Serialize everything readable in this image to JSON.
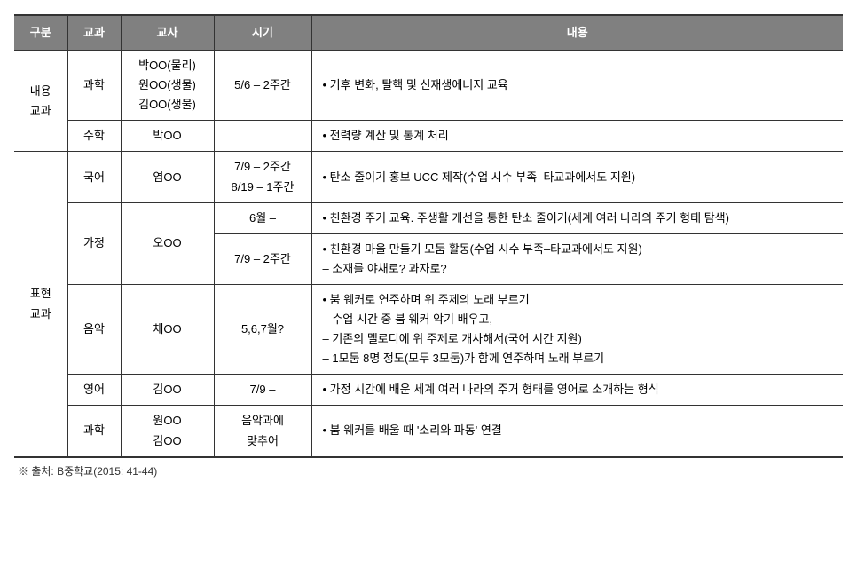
{
  "headers": {
    "gubun": "구분",
    "subject": "교과",
    "teacher": "교사",
    "period": "시기",
    "content": "내용"
  },
  "sections": {
    "content_subject": {
      "label": "내용\n교과",
      "rows": [
        {
          "subject": "과학",
          "teacher": "박OO(물리)\n원OO(생물)\n김OO(생물)",
          "period": "5/6 – 2주간",
          "content": "• 기후 변화, 탈핵 및 신재생에너지 교육"
        },
        {
          "subject": "수학",
          "teacher": "박OO",
          "period": "",
          "content": "• 전력량 계산 및 통계 처리"
        }
      ]
    },
    "expression_subject": {
      "label": "표현\n교과",
      "rows": [
        {
          "subject": "국어",
          "teacher": "염OO",
          "period": "7/9 – 2주간\n8/19 – 1주간",
          "content": "• 탄소 줄이기 홍보 UCC 제작(수업 시수 부족–타교과에서도 지원)"
        },
        {
          "subject": "가정",
          "teacher": "오OO",
          "subrows": [
            {
              "period": "6월 –",
              "content": "• 친환경 주거 교육. 주생활 개선을 통한 탄소 줄이기(세계 여러 나라의 주거 형태 탐색)"
            },
            {
              "period": "7/9 – 2주간",
              "content": "• 친환경 마을 만들기 모둠 활동(수업 시수 부족–타교과에서도 지원)\n – 소재를 야채로? 과자로?"
            }
          ]
        },
        {
          "subject": "음악",
          "teacher": "채OO",
          "period": "5,6,7월?",
          "content": "• 붐 웨커로 연주하며 위 주제의 노래 부르기\n – 수업 시간 중 붐 웨커 악기 배우고,\n – 기존의 멜로디에 위 주제로 개사해서(국어 시간 지원)\n – 1모둠 8명 정도(모두 3모둠)가 함께 연주하며 노래 부르기"
        },
        {
          "subject": "영어",
          "teacher": "김OO",
          "period": "7/9 –",
          "content": "• 가정 시간에 배운 세계 여러 나라의 주거 형태를 영어로 소개하는 형식"
        },
        {
          "subject": "과학",
          "teacher": "원OO\n김OO",
          "period": "음악과에\n맞추어",
          "content": "• 붐 웨커를 배울 때 '소리와 파동' 연결"
        }
      ]
    }
  },
  "source": "※ 출처: B중학교(2015: 41-44)",
  "style": {
    "header_bg": "#808080",
    "header_color": "#ffffff",
    "border_color": "#333333",
    "font_size_cell": 13,
    "font_size_source": 12
  }
}
